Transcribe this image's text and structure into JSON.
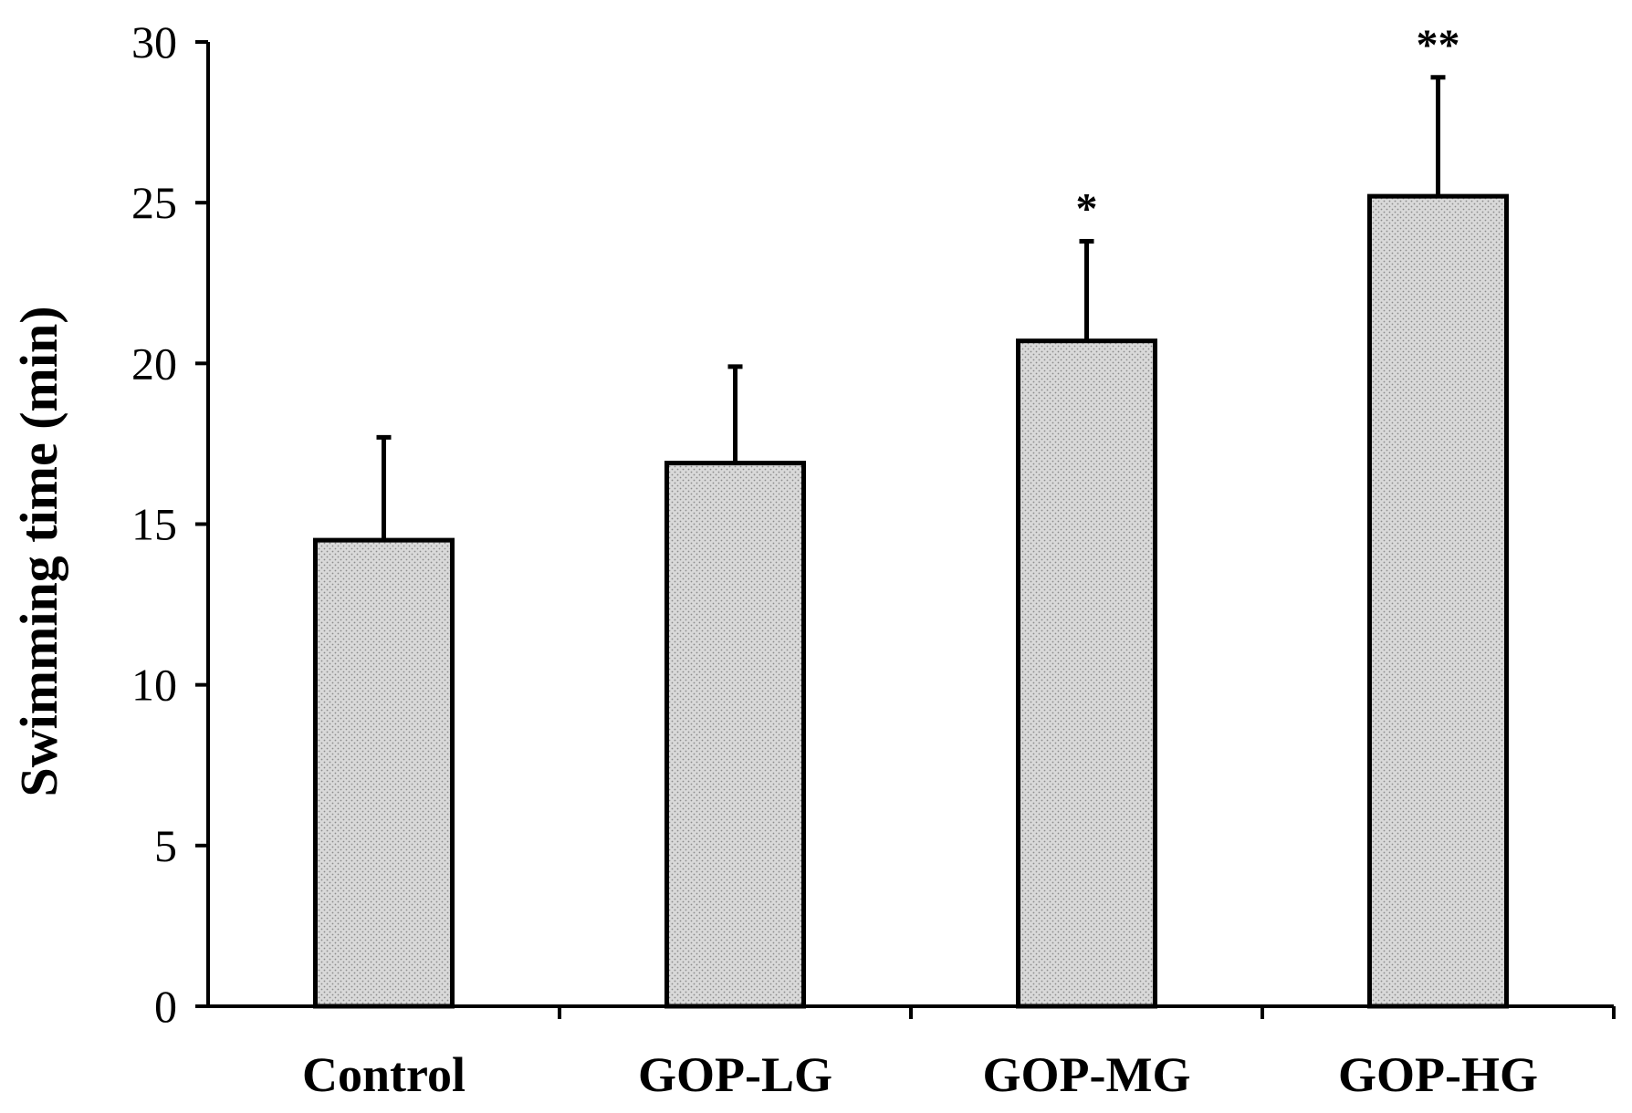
{
  "chart_data": {
    "type": "bar",
    "title": "",
    "xlabel": "",
    "ylabel": "Swimming time (min)",
    "ylim": [
      0,
      30
    ],
    "yticks": [
      0,
      5,
      10,
      15,
      20,
      25,
      30
    ],
    "categories": [
      "Control",
      "GOP-LG",
      "GOP-MG",
      "GOP-HG"
    ],
    "values": [
      14.5,
      16.9,
      20.7,
      25.2
    ],
    "errors": [
      3.2,
      3.0,
      3.1,
      3.7
    ],
    "annotations": [
      "",
      "",
      "*",
      "**"
    ],
    "grid": false,
    "legend": "none",
    "colors": {
      "bar_fill": "#d9d9d9",
      "bar_dots": "#8c8c8c",
      "stroke": "#000000"
    }
  }
}
